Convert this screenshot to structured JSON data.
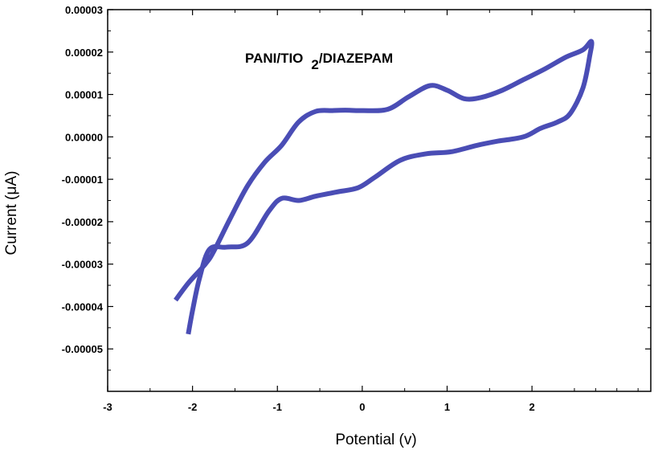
{
  "chart_data": {
    "type": "line",
    "title_main": "PANI/TIO",
    "title_subscript": "2",
    "title_suffix": "/DIAZEPAM",
    "xlabel": "Potential (v)",
    "ylabel": "Current (μA)",
    "xlim": [
      -3,
      3.4
    ],
    "ylim": [
      -6e-05,
      3e-05
    ],
    "x_ticks": [
      -3,
      -2,
      -1,
      0,
      1,
      2
    ],
    "x_tick_labels": [
      "-3",
      "-2",
      "-1",
      "0",
      "1",
      "2"
    ],
    "y_ticks": [
      -5e-05,
      -4e-05,
      -3e-05,
      -2e-05,
      -1e-05,
      0,
      1e-05,
      2e-05,
      3e-05
    ],
    "y_tick_labels": [
      "-0.00005",
      "-0.00004",
      "-0.00003",
      "-0.00002",
      "-0.00001",
      "0.00000",
      "0.00001",
      "0.00002",
      "0.00003"
    ],
    "grid": false,
    "legend": "none",
    "series": [
      {
        "color": "#4a4db5",
        "x": [
          -2.2,
          -2.05,
          -1.85,
          -1.75,
          -1.55,
          -1.35,
          -1.15,
          -0.95,
          -0.75,
          -0.55,
          -0.35,
          -0.2,
          0,
          0.3,
          0.55,
          0.8,
          1.0,
          1.2,
          1.4,
          1.65,
          1.9,
          2.15,
          2.4,
          2.6,
          2.7,
          2.68,
          2.6,
          2.45,
          2.3,
          2.1,
          1.9,
          1.6,
          1.35,
          1.05,
          0.75,
          0.45,
          0.15,
          -0.05,
          -0.3,
          -0.55,
          -0.75,
          -0.95,
          -1.1,
          -1.35,
          -1.6,
          -1.8,
          -1.92,
          -2.0,
          -2.05
        ],
        "y": [
          -3.85e-05,
          -3.45e-05,
          -3e-05,
          -2.7e-05,
          -1.9e-05,
          -1.15e-05,
          -6e-06,
          -2e-06,
          3.5e-06,
          6e-06,
          6.2e-06,
          6.3e-06,
          6.2e-06,
          6.5e-06,
          9.5e-06,
          1.21e-05,
          1.1e-05,
          9e-06,
          9.3e-06,
          1.1e-05,
          1.35e-05,
          1.6e-05,
          1.88e-05,
          2.05e-05,
          2.25e-05,
          1.9e-05,
          1.15e-05,
          5.5e-06,
          3.5e-06,
          2e-06,
          0.0,
          -1e-06,
          -2e-06,
          -3.5e-06,
          -4e-06,
          -5.5e-06,
          -9.5e-06,
          -1.2e-05,
          -1.3e-05,
          -1.4e-05,
          -1.5e-05,
          -1.45e-05,
          -1.75e-05,
          -2.5e-05,
          -2.6e-05,
          -2.65e-05,
          -3.35e-05,
          -4.1e-05,
          -4.65e-05
        ]
      }
    ]
  }
}
